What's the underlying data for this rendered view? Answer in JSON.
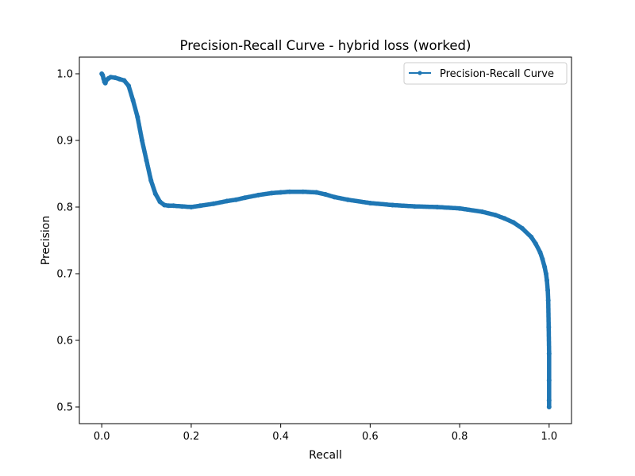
{
  "chart_data": {
    "type": "line",
    "title": "Precision-Recall Curve - hybrid loss (worked)",
    "xlabel": "Recall",
    "ylabel": "Precision",
    "xlim": [
      -0.05,
      1.05
    ],
    "ylim": [
      0.475,
      1.025
    ],
    "xticks": [
      0.0,
      0.2,
      0.4,
      0.6,
      0.8,
      1.0
    ],
    "xtick_labels": [
      "0.0",
      "0.2",
      "0.4",
      "0.6",
      "0.8",
      "1.0"
    ],
    "yticks": [
      0.5,
      0.6,
      0.7,
      0.8,
      0.9,
      1.0
    ],
    "ytick_labels": [
      "0.5",
      "0.6",
      "0.7",
      "0.8",
      "0.9",
      "1.0"
    ],
    "grid": false,
    "legend_position": "upper right",
    "series": [
      {
        "name": "Precision-Recall Curve",
        "color": "#1f77b4",
        "marker": "dot",
        "x": [
          0.0,
          0.002,
          0.004,
          0.006,
          0.008,
          0.01,
          0.015,
          0.02,
          0.03,
          0.04,
          0.05,
          0.06,
          0.07,
          0.08,
          0.09,
          0.1,
          0.11,
          0.12,
          0.13,
          0.14,
          0.15,
          0.16,
          0.18,
          0.2,
          0.22,
          0.25,
          0.28,
          0.3,
          0.32,
          0.35,
          0.38,
          0.4,
          0.42,
          0.45,
          0.48,
          0.5,
          0.52,
          0.55,
          0.6,
          0.65,
          0.7,
          0.75,
          0.8,
          0.85,
          0.88,
          0.9,
          0.92,
          0.94,
          0.96,
          0.97,
          0.98,
          0.985,
          0.99,
          0.993,
          0.995,
          0.997,
          0.998,
          0.999,
          1.0,
          1.0,
          1.0,
          1.0
        ],
        "y": [
          1.0,
          0.998,
          0.993,
          0.988,
          0.986,
          0.99,
          0.993,
          0.995,
          0.994,
          0.992,
          0.99,
          0.982,
          0.96,
          0.935,
          0.9,
          0.87,
          0.84,
          0.82,
          0.808,
          0.803,
          0.802,
          0.802,
          0.801,
          0.8,
          0.802,
          0.805,
          0.809,
          0.811,
          0.814,
          0.818,
          0.821,
          0.822,
          0.823,
          0.823,
          0.822,
          0.819,
          0.815,
          0.811,
          0.806,
          0.803,
          0.801,
          0.8,
          0.798,
          0.793,
          0.788,
          0.783,
          0.777,
          0.768,
          0.755,
          0.745,
          0.732,
          0.722,
          0.71,
          0.7,
          0.69,
          0.675,
          0.66,
          0.62,
          0.58,
          0.54,
          0.51,
          0.5
        ]
      }
    ]
  }
}
